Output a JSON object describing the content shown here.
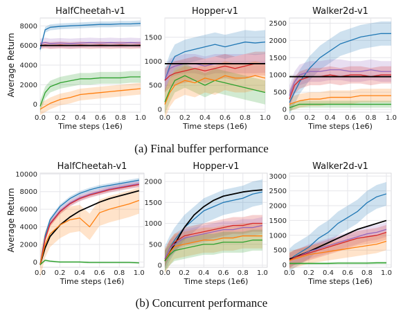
{
  "captions": [
    "(a) Final buffer performance",
    "(b) Concurrent performance"
  ],
  "colors": {
    "blue": "#1f77b4",
    "purple": "#9467bd",
    "red": "#d62728",
    "green": "#2ca02c",
    "orange": "#ff7f0e",
    "black": "#000000",
    "grid": "#e6e6ea"
  },
  "chart_data": [
    {
      "type": "line",
      "title": "HalfCheetah-v1",
      "xlabel": "Time steps (1e6)",
      "ylabel": "Average Return",
      "xlim": [
        0,
        1
      ],
      "ylim": [
        -800,
        8800
      ],
      "xticks": [
        "0.0",
        "0.2",
        "0.4",
        "0.6",
        "0.8",
        "1.0"
      ],
      "yticks": [
        "0",
        "2000",
        "4000",
        "6000",
        "8000"
      ],
      "x": [
        0,
        0.05,
        0.1,
        0.2,
        0.3,
        0.4,
        0.5,
        0.6,
        0.7,
        0.8,
        0.9,
        1.0
      ],
      "series": [
        {
          "color": "blue",
          "values": [
            5600,
            7600,
            7850,
            7950,
            8000,
            8050,
            8100,
            8150,
            8150,
            8200,
            8200,
            8250
          ],
          "band": 300
        },
        {
          "color": "purple",
          "values": [
            6200,
            6300,
            6200,
            6250,
            6200,
            6250,
            6300,
            6250,
            6300,
            6250,
            6300,
            6250
          ],
          "band": 500
        },
        {
          "color": "red",
          "values": [
            6000,
            6050,
            6000,
            6050,
            6000,
            6050,
            6000,
            6050,
            6000,
            6050,
            6000,
            6050
          ],
          "band": 350
        },
        {
          "color": "green",
          "values": [
            -200,
            1200,
            1800,
            2200,
            2400,
            2600,
            2600,
            2700,
            2700,
            2700,
            2800,
            2800
          ],
          "band": 600
        },
        {
          "color": "orange",
          "values": [
            -500,
            -200,
            100,
            500,
            700,
            1000,
            1100,
            1200,
            1300,
            1400,
            1500,
            1600
          ],
          "band": 600
        },
        {
          "color": "black",
          "values": [
            6000,
            6000,
            6000,
            6000,
            6000,
            6000,
            6000,
            6000,
            6000,
            6000,
            6000,
            6000
          ],
          "band": 0
        }
      ]
    },
    {
      "type": "line",
      "title": "Hopper-v1",
      "xlabel": "Time steps (1e6)",
      "ylabel": "",
      "xlim": [
        0,
        1
      ],
      "ylim": [
        -60,
        1900
      ],
      "xticks": [
        "0.0",
        "0.2",
        "0.4",
        "0.6",
        "0.8",
        "1.0"
      ],
      "yticks": [
        "0",
        "500",
        "1000",
        "1500"
      ],
      "x": [
        0,
        0.05,
        0.1,
        0.2,
        0.3,
        0.4,
        0.5,
        0.6,
        0.7,
        0.8,
        0.9,
        1.0
      ],
      "series": [
        {
          "color": "blue",
          "values": [
            600,
            900,
            1100,
            1200,
            1250,
            1300,
            1350,
            1300,
            1350,
            1400,
            1380,
            1400
          ],
          "band": 250
        },
        {
          "color": "purple",
          "values": [
            600,
            850,
            900,
            950,
            950,
            900,
            950,
            950,
            950,
            950,
            950,
            960
          ],
          "band": 200
        },
        {
          "color": "red",
          "values": [
            600,
            700,
            750,
            800,
            850,
            800,
            850,
            900,
            850,
            900,
            950,
            950
          ],
          "band": 250
        },
        {
          "color": "green",
          "values": [
            150,
            400,
            600,
            700,
            600,
            500,
            600,
            550,
            500,
            450,
            400,
            350
          ],
          "band": 250
        },
        {
          "color": "orange",
          "values": [
            100,
            350,
            500,
            600,
            550,
            650,
            600,
            700,
            650,
            650,
            700,
            650
          ],
          "band": 300
        },
        {
          "color": "black",
          "values": [
            950,
            950,
            950,
            950,
            950,
            950,
            950,
            950,
            950,
            950,
            950,
            950
          ],
          "band": 0
        }
      ]
    },
    {
      "type": "line",
      "title": "Walker2d-v1",
      "xlabel": "Time steps (1e6)",
      "ylabel": "",
      "xlim": [
        0,
        1
      ],
      "ylim": [
        -80,
        2650
      ],
      "xticks": [
        "0.0",
        "0.2",
        "0.4",
        "0.6",
        "0.8",
        "1.0"
      ],
      "yticks": [
        "0",
        "500",
        "1000",
        "1500",
        "2000",
        "2500"
      ],
      "x": [
        0,
        0.05,
        0.1,
        0.2,
        0.3,
        0.4,
        0.5,
        0.6,
        0.7,
        0.8,
        0.9,
        1.0
      ],
      "series": [
        {
          "color": "blue",
          "values": [
            200,
            500,
            800,
            1200,
            1500,
            1700,
            1900,
            2000,
            2100,
            2150,
            2200,
            2200
          ],
          "band": 350
        },
        {
          "color": "purple",
          "values": [
            400,
            800,
            1000,
            1100,
            1100,
            1150,
            1150,
            1100,
            1100,
            1150,
            1100,
            1100
          ],
          "band": 300
        },
        {
          "color": "red",
          "values": [
            300,
            700,
            850,
            950,
            950,
            1000,
            950,
            1000,
            1000,
            950,
            1000,
            1000
          ],
          "band": 250
        },
        {
          "color": "orange",
          "values": [
            150,
            200,
            250,
            300,
            300,
            350,
            350,
            350,
            400,
            400,
            400,
            400
          ],
          "band": 200
        },
        {
          "color": "green",
          "values": [
            50,
            100,
            150,
            150,
            150,
            150,
            150,
            150,
            150,
            150,
            150,
            150
          ],
          "band": 100
        },
        {
          "color": "black",
          "values": [
            950,
            950,
            950,
            950,
            950,
            950,
            950,
            950,
            950,
            950,
            950,
            950
          ],
          "band": 0
        }
      ]
    },
    {
      "type": "line",
      "title": "HalfCheetah-v1",
      "xlabel": "Time steps (1e6)",
      "ylabel": "Average Return",
      "xlim": [
        0,
        1.05
      ],
      "ylim": [
        -600,
        10100
      ],
      "xticks": [
        "0.0",
        "0.2",
        "0.4",
        "0.6",
        "0.8",
        "1.0"
      ],
      "yticks": [
        "0",
        "2000",
        "4000",
        "6000",
        "8000",
        "10000"
      ],
      "x": [
        0,
        0.05,
        0.1,
        0.2,
        0.3,
        0.4,
        0.5,
        0.6,
        0.7,
        0.8,
        0.9,
        1.0
      ],
      "series": [
        {
          "color": "blue",
          "values": [
            -300,
            3000,
            4800,
            6300,
            7200,
            7800,
            8200,
            8500,
            8700,
            8900,
            9100,
            9300
          ],
          "band": 250
        },
        {
          "color": "purple",
          "values": [
            -300,
            2700,
            4400,
            5800,
            6700,
            7300,
            7700,
            8000,
            8300,
            8500,
            8700,
            8900
          ],
          "band": 350
        },
        {
          "color": "red",
          "values": [
            -300,
            2600,
            4300,
            5700,
            6600,
            7200,
            7600,
            7900,
            8200,
            8400,
            8600,
            8800
          ],
          "band": 300
        },
        {
          "color": "black",
          "values": [
            -300,
            1600,
            2900,
            4200,
            5100,
            5800,
            6300,
            6800,
            7200,
            7500,
            7800,
            8100
          ],
          "band": 0
        },
        {
          "color": "orange",
          "values": [
            -300,
            2000,
            3200,
            4200,
            4800,
            5000,
            4000,
            5600,
            6000,
            6300,
            6600,
            7000
          ],
          "band": 1500
        },
        {
          "color": "green",
          "values": [
            -300,
            200,
            100,
            0,
            0,
            0,
            -50,
            -50,
            -50,
            -50,
            -50,
            -100
          ],
          "band": 100
        }
      ]
    },
    {
      "type": "line",
      "title": "Hopper-v1",
      "xlabel": "Time steps (1e6)",
      "ylabel": "",
      "xlim": [
        0,
        1.05
      ],
      "ylim": [
        -50,
        2200
      ],
      "xticks": [
        "0.0",
        "0.2",
        "0.4",
        "0.6",
        "0.8",
        "1.0"
      ],
      "yticks": [
        "0",
        "500",
        "1000",
        "1500",
        "2000"
      ],
      "x": [
        0,
        0.05,
        0.1,
        0.2,
        0.3,
        0.4,
        0.5,
        0.6,
        0.7,
        0.8,
        0.9,
        1.0
      ],
      "series": [
        {
          "color": "blue",
          "values": [
            150,
            400,
            600,
            900,
            1100,
            1300,
            1400,
            1500,
            1550,
            1600,
            1700,
            1750
          ],
          "band": 300
        },
        {
          "color": "black",
          "values": [
            100,
            300,
            500,
            900,
            1200,
            1400,
            1550,
            1650,
            1700,
            1750,
            1780,
            1800
          ],
          "band": 0
        },
        {
          "color": "red",
          "values": [
            150,
            400,
            550,
            700,
            750,
            800,
            850,
            900,
            950,
            950,
            1000,
            1000
          ],
          "band": 200
        },
        {
          "color": "purple",
          "values": [
            150,
            400,
            500,
            650,
            700,
            750,
            800,
            850,
            850,
            900,
            900,
            950
          ],
          "band": 200
        },
        {
          "color": "orange",
          "values": [
            100,
            300,
            450,
            500,
            550,
            600,
            600,
            650,
            650,
            700,
            700,
            700
          ],
          "band": 300
        },
        {
          "color": "green",
          "values": [
            100,
            250,
            350,
            400,
            450,
            500,
            500,
            550,
            550,
            550,
            600,
            600
          ],
          "band": 250
        }
      ]
    },
    {
      "type": "line",
      "title": "Walker2d-v1",
      "xlabel": "Time steps (1e6)",
      "ylabel": "",
      "xlim": [
        0,
        1.05
      ],
      "ylim": [
        -80,
        3100
      ],
      "xticks": [
        "0.0",
        "0.2",
        "0.4",
        "0.6",
        "0.8",
        "1.0"
      ],
      "yticks": [
        "0",
        "500",
        "1000",
        "1500",
        "2000",
        "2500",
        "3000"
      ],
      "x": [
        0,
        0.05,
        0.1,
        0.2,
        0.3,
        0.4,
        0.5,
        0.6,
        0.7,
        0.8,
        0.9,
        1.0
      ],
      "series": [
        {
          "color": "blue",
          "values": [
            150,
            300,
            400,
            600,
            900,
            1100,
            1400,
            1600,
            1800,
            2100,
            2300,
            2400
          ],
          "band": 400
        },
        {
          "color": "black",
          "values": [
            200,
            250,
            320,
            450,
            600,
            750,
            900,
            1050,
            1200,
            1300,
            1400,
            1500
          ],
          "band": 0
        },
        {
          "color": "purple",
          "values": [
            150,
            250,
            300,
            450,
            550,
            650,
            750,
            850,
            950,
            1050,
            1100,
            1200
          ],
          "band": 250
        },
        {
          "color": "red",
          "values": [
            150,
            250,
            300,
            400,
            500,
            600,
            700,
            800,
            900,
            950,
            1000,
            1100
          ],
          "band": 250
        },
        {
          "color": "orange",
          "values": [
            150,
            200,
            250,
            350,
            400,
            450,
            500,
            550,
            600,
            650,
            700,
            800
          ],
          "band": 300
        },
        {
          "color": "green",
          "values": [
            50,
            50,
            50,
            50,
            50,
            50,
            60,
            60,
            60,
            60,
            70,
            70
          ],
          "band": 40
        }
      ]
    }
  ]
}
